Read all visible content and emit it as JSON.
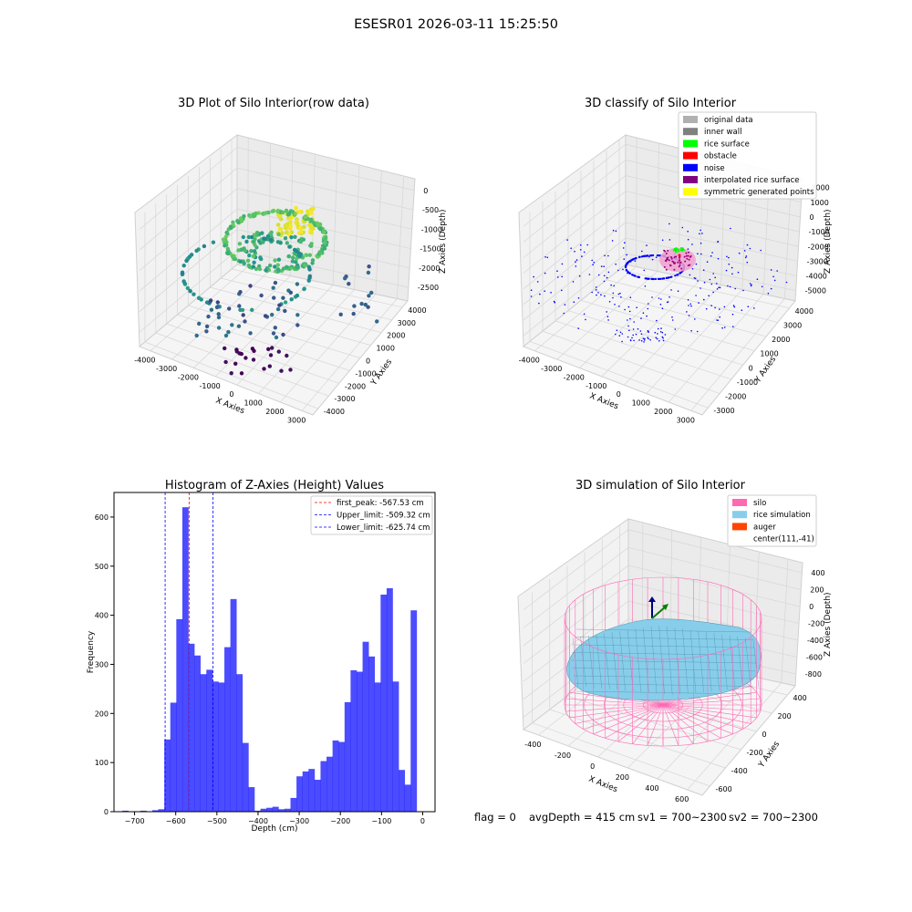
{
  "suptitle": "ESESR01 2026-03-11 15:25:50",
  "chart_data": [
    {
      "type": "scatter",
      "title": "3D Plot of Silo Interior(row data)",
      "xlabel": "X Axies",
      "ylabel": "Y Axies",
      "zlabel": "Z Axies (Depth)",
      "x_ticks": [
        "-4000",
        "-3000",
        "-2000",
        "-1000",
        "0",
        "1000",
        "2000",
        "3000"
      ],
      "y_ticks": [
        "-4000",
        "-3000",
        "-2000",
        "-1000",
        "0",
        "1000",
        "2000",
        "3000",
        "4000"
      ],
      "z_ticks": [
        "0",
        "-500",
        "-1000",
        "-1500",
        "-2000",
        "-2500"
      ],
      "xlim": [
        -4500,
        3000
      ],
      "ylim": [
        -4000,
        4000
      ],
      "zlim": [
        -2800,
        100
      ],
      "colormap": [
        "#440154",
        "#3b528b",
        "#21908d",
        "#5dc963",
        "#fde725"
      ]
    },
    {
      "type": "scatter",
      "title": "3D classify of Silo Interior",
      "xlabel": "X Axies",
      "ylabel": "Y Axies",
      "zlabel": "Z Axies (Depth)",
      "x_ticks": [
        "-4000",
        "-3000",
        "-2000",
        "-1000",
        "0",
        "1000",
        "2000",
        "3000"
      ],
      "y_ticks": [
        "-3000",
        "-2000",
        "-1000",
        "0",
        "1000",
        "2000",
        "3000",
        "4000"
      ],
      "z_ticks": [
        "2000",
        "1000",
        "0",
        "-1000",
        "-2000",
        "-3000",
        "-4000",
        "-5000"
      ],
      "xlim": [
        -4500,
        3000
      ],
      "ylim": [
        -3500,
        4000
      ],
      "zlim": [
        -5200,
        2200
      ],
      "legend": [
        {
          "label": "original data",
          "color": "#b0b0b0"
        },
        {
          "label": "inner wall",
          "color": "#808080"
        },
        {
          "label": "rice surface",
          "color": "#00ff00"
        },
        {
          "label": "obstacle",
          "color": "#ff0000"
        },
        {
          "label": "noise",
          "color": "#0000ff"
        },
        {
          "label": "interpolated rice surface",
          "color": "#800080"
        },
        {
          "label": "symmetric generated points",
          "color": "#ffff00"
        }
      ]
    },
    {
      "type": "bar",
      "title": "Histogram of Z-Axies (Height) Values",
      "xlabel": "Depth (cm)",
      "ylabel": "Frequency",
      "xlim": [
        -750,
        30
      ],
      "ylim": [
        0,
        650
      ],
      "x_ticks": [
        -700,
        -600,
        -500,
        -400,
        -300,
        -200,
        -100,
        0
      ],
      "y_ticks": [
        0,
        100,
        200,
        300,
        400,
        500,
        600
      ],
      "bar_color": "#0000ff",
      "bin_edges_start": -730,
      "bin_width": 14.6,
      "values": [
        2,
        0,
        0,
        2,
        0,
        3,
        5,
        147,
        222,
        392,
        620,
        342,
        318,
        280,
        289,
        265,
        263,
        335,
        433,
        280,
        140,
        50,
        2,
        6,
        8,
        10,
        5,
        6,
        28,
        72,
        82,
        87,
        65,
        103,
        112,
        145,
        142,
        223,
        288,
        285,
        346,
        316,
        263,
        442,
        455,
        265,
        85,
        55,
        410
      ],
      "vlines": [
        {
          "x": -567.53,
          "label": "first_peak: -567.53 cm",
          "color": "#ff0000"
        },
        {
          "x": -509.32,
          "label": "Upper_limit: -509.32 cm",
          "color": "#0000ff"
        },
        {
          "x": -625.74,
          "label": "Lower_limit: -625.74 cm",
          "color": "#0000ff"
        }
      ]
    },
    {
      "type": "other",
      "title": "3D simulation of Silo Interior",
      "xlabel": "X Axies",
      "ylabel": "Y Axies",
      "zlabel": "Z Axies (Depth)",
      "x_ticks": [
        "-400",
        "-200",
        "0",
        "200",
        "400",
        "600"
      ],
      "y_ticks": [
        "-600",
        "-400",
        "-200",
        "0",
        "200",
        "400"
      ],
      "z_ticks": [
        "400",
        "200",
        "0",
        "-200",
        "-400",
        "-600",
        "-800"
      ],
      "legend": [
        {
          "label": "silo",
          "color": "#ff69b4"
        },
        {
          "label": "rice simulation",
          "color": "#87ceeb"
        },
        {
          "label": "auger",
          "color": "#ff4500"
        },
        {
          "label": "center(111,-41)",
          "color": "#ffffff"
        }
      ]
    }
  ],
  "status": {
    "flag": "flag = 0",
    "avg_depth": "avgDepth = 415 cm",
    "sv1": "sv1 = 700~2300",
    "sv2": "sv2 = 700~2300"
  }
}
